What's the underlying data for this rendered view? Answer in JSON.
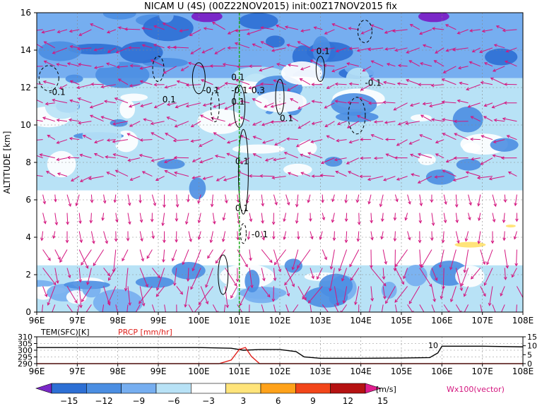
{
  "title": "NICAM U (4S) (00Z22NOV2015) init:00Z17NOV2015 fix",
  "chart_data": [
    {
      "type": "heatmap",
      "title": "NICAM U (4S) (00Z22NOV2015) init:00Z17NOV2015 fix",
      "xlabel": "",
      "ylabel": "ALTITUDE [km]",
      "x_ticks": [
        "96E",
        "97E",
        "98E",
        "99E",
        "100E",
        "101E",
        "102E",
        "103E",
        "104E",
        "105E",
        "106E",
        "107E",
        "108E"
      ],
      "y_ticks": [
        "0",
        "2",
        "4",
        "6",
        "8",
        "10",
        "12",
        "14",
        "16"
      ],
      "xlim": [
        96,
        108
      ],
      "ylim": [
        0,
        16
      ],
      "grid": true,
      "contour_labels": [
        "-0.1",
        "0.1",
        "-0.1",
        "0.1",
        "-0.1",
        "0.1",
        "0.3",
        "0.1",
        "0.1",
        "0.1",
        "-0.1",
        "-0.1",
        "0.1"
      ],
      "bands": [
        {
          "ymin": 12.5,
          "ymax": 16,
          "value": -9
        },
        {
          "ymin": 10,
          "ymax": 12.5,
          "value": -6
        },
        {
          "ymin": 6.5,
          "ymax": 10,
          "value": -4
        },
        {
          "ymin": 2.5,
          "ymax": 6.5,
          "value": 0
        },
        {
          "ymin": 0,
          "ymax": 2.5,
          "value": -5
        }
      ],
      "marker_x": 101
    },
    {
      "type": "line",
      "series": [
        {
          "name": "TEM(SFC)[K]",
          "color": "#000000",
          "x": [
            96,
            100,
            100.8,
            101.1,
            101.5,
            102,
            102.4,
            102.6,
            103,
            104,
            105,
            105.7,
            105.9,
            106,
            107,
            108
          ],
          "y": [
            302,
            302,
            301.5,
            300,
            300.5,
            300.5,
            299,
            295,
            294,
            294,
            294.2,
            294.5,
            298,
            303,
            303,
            302.5
          ]
        },
        {
          "name": "PRCP [mm/hr]",
          "color": "#e0201b",
          "x": [
            96,
            100.5,
            100.8,
            101.0,
            101.15,
            101.3,
            101.5,
            108
          ],
          "y": [
            0,
            0,
            2,
            8,
            9,
            4,
            0,
            0
          ]
        }
      ],
      "x_ticks": [
        "96E",
        "97E",
        "98E",
        "99E",
        "100E",
        "101E",
        "102E",
        "103E",
        "104E",
        "105E",
        "106E",
        "107E",
        "108E"
      ],
      "left_ticks": [
        "310",
        "305",
        "300",
        "295",
        "290"
      ],
      "right_ticks": [
        "15",
        "10",
        "5",
        "0"
      ],
      "ylim_left": [
        290,
        310
      ],
      "ylim_right": [
        0,
        15
      ],
      "annotation": "10"
    }
  ],
  "colorbar": {
    "labels": [
      "−15",
      "−12",
      "−9",
      "−6",
      "−3",
      "3",
      "6",
      "9",
      "12",
      "15"
    ],
    "unit": "[m/s]",
    "colors": [
      "#7a28c8",
      "#2d6fd4",
      "#4b8ee2",
      "#76aef0",
      "#b8e2f6",
      "#ffffff",
      "#ffe47a",
      "#ffa21a",
      "#f2461a",
      "#b51212",
      "#e01e8e"
    ]
  },
  "vector_label": "Wx100(vector)"
}
